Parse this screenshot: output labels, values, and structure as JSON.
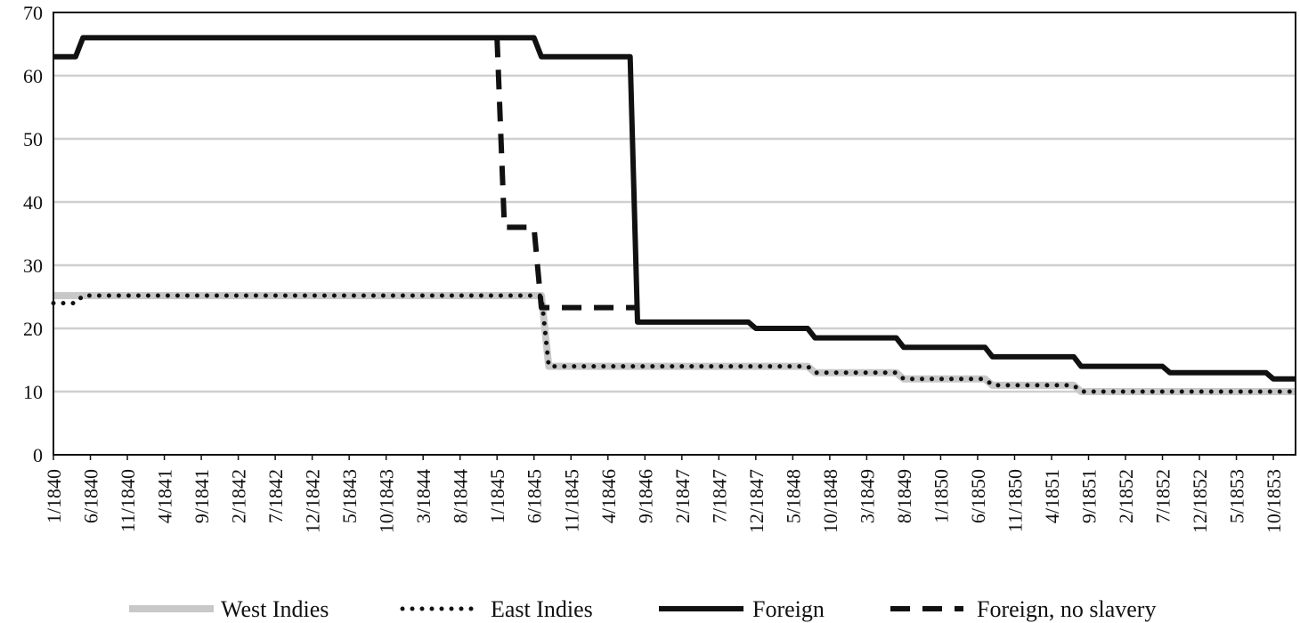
{
  "chart_data": {
    "type": "line",
    "title": "",
    "xlabel": "",
    "ylabel": "",
    "ylim": [
      0,
      70
    ],
    "yticks": [
      0,
      10,
      20,
      30,
      40,
      50,
      60,
      70
    ],
    "x_start": "1/1840",
    "x_end": "1/1854",
    "x_tick_labels": [
      "1/1840",
      "6/1840",
      "11/1840",
      "4/1841",
      "9/1841",
      "2/1842",
      "7/1842",
      "12/1842",
      "5/1843",
      "10/1843",
      "3/1844",
      "8/1844",
      "1/1845",
      "6/1845",
      "11/1845",
      "4/1846",
      "9/1846",
      "2/1847",
      "7/1847",
      "12/1847",
      "5/1848",
      "10/1848",
      "3/1849",
      "8/1849",
      "1/1850",
      "6/1850",
      "11/1850",
      "4/1851",
      "9/1851",
      "2/1852",
      "7/1852",
      "12/1852",
      "5/1853",
      "10/1853"
    ],
    "grid": true,
    "legend_position": "bottom",
    "series": [
      {
        "name": "West Indies",
        "style": "solid",
        "color": "#c8c8c8",
        "points": [
          [
            "1/1840",
            25.2
          ],
          [
            "7/1845",
            25.2
          ],
          [
            "8/1845",
            14
          ],
          [
            "7/1848",
            14
          ],
          [
            "8/1848",
            13
          ],
          [
            "7/1849",
            13
          ],
          [
            "8/1849",
            12
          ],
          [
            "7/1850",
            12
          ],
          [
            "8/1850",
            11
          ],
          [
            "7/1851",
            11
          ],
          [
            "8/1851",
            10
          ],
          [
            "1/1854",
            10
          ]
        ]
      },
      {
        "name": "East Indies",
        "style": "dotted",
        "color": "#111111",
        "points": [
          [
            "1/1840",
            24
          ],
          [
            "4/1840",
            24
          ],
          [
            "5/1840",
            25.2
          ],
          [
            "7/1845",
            25.2
          ],
          [
            "8/1845",
            14
          ],
          [
            "7/1848",
            14
          ],
          [
            "8/1848",
            13
          ],
          [
            "7/1849",
            13
          ],
          [
            "8/1849",
            12
          ],
          [
            "7/1850",
            12
          ],
          [
            "8/1850",
            11
          ],
          [
            "7/1851",
            11
          ],
          [
            "8/1851",
            10
          ],
          [
            "1/1854",
            10
          ]
        ]
      },
      {
        "name": "Foreign",
        "style": "solid",
        "color": "#111111",
        "points": [
          [
            "1/1840",
            63
          ],
          [
            "4/1840",
            63
          ],
          [
            "5/1840",
            66
          ],
          [
            "6/1845",
            66
          ],
          [
            "7/1845",
            63
          ],
          [
            "7/1846",
            63
          ],
          [
            "8/1846",
            21
          ],
          [
            "11/1847",
            21
          ],
          [
            "12/1847",
            20
          ],
          [
            "7/1848",
            20
          ],
          [
            "8/1848",
            18.5
          ],
          [
            "7/1849",
            18.5
          ],
          [
            "8/1849",
            17
          ],
          [
            "7/1850",
            17
          ],
          [
            "8/1850",
            15.5
          ],
          [
            "7/1851",
            15.5
          ],
          [
            "8/1851",
            14
          ],
          [
            "7/1852",
            14
          ],
          [
            "8/1852",
            13
          ],
          [
            "9/1853",
            13
          ],
          [
            "10/1853",
            12
          ],
          [
            "1/1854",
            12
          ]
        ]
      },
      {
        "name": "Foreign, no slavery",
        "style": "dashed",
        "color": "#111111",
        "points": [
          [
            "1/1845",
            66
          ],
          [
            "2/1845",
            36
          ],
          [
            "6/1845",
            36
          ],
          [
            "7/1845",
            23.3
          ],
          [
            "8/1846",
            23.3
          ]
        ]
      }
    ]
  }
}
